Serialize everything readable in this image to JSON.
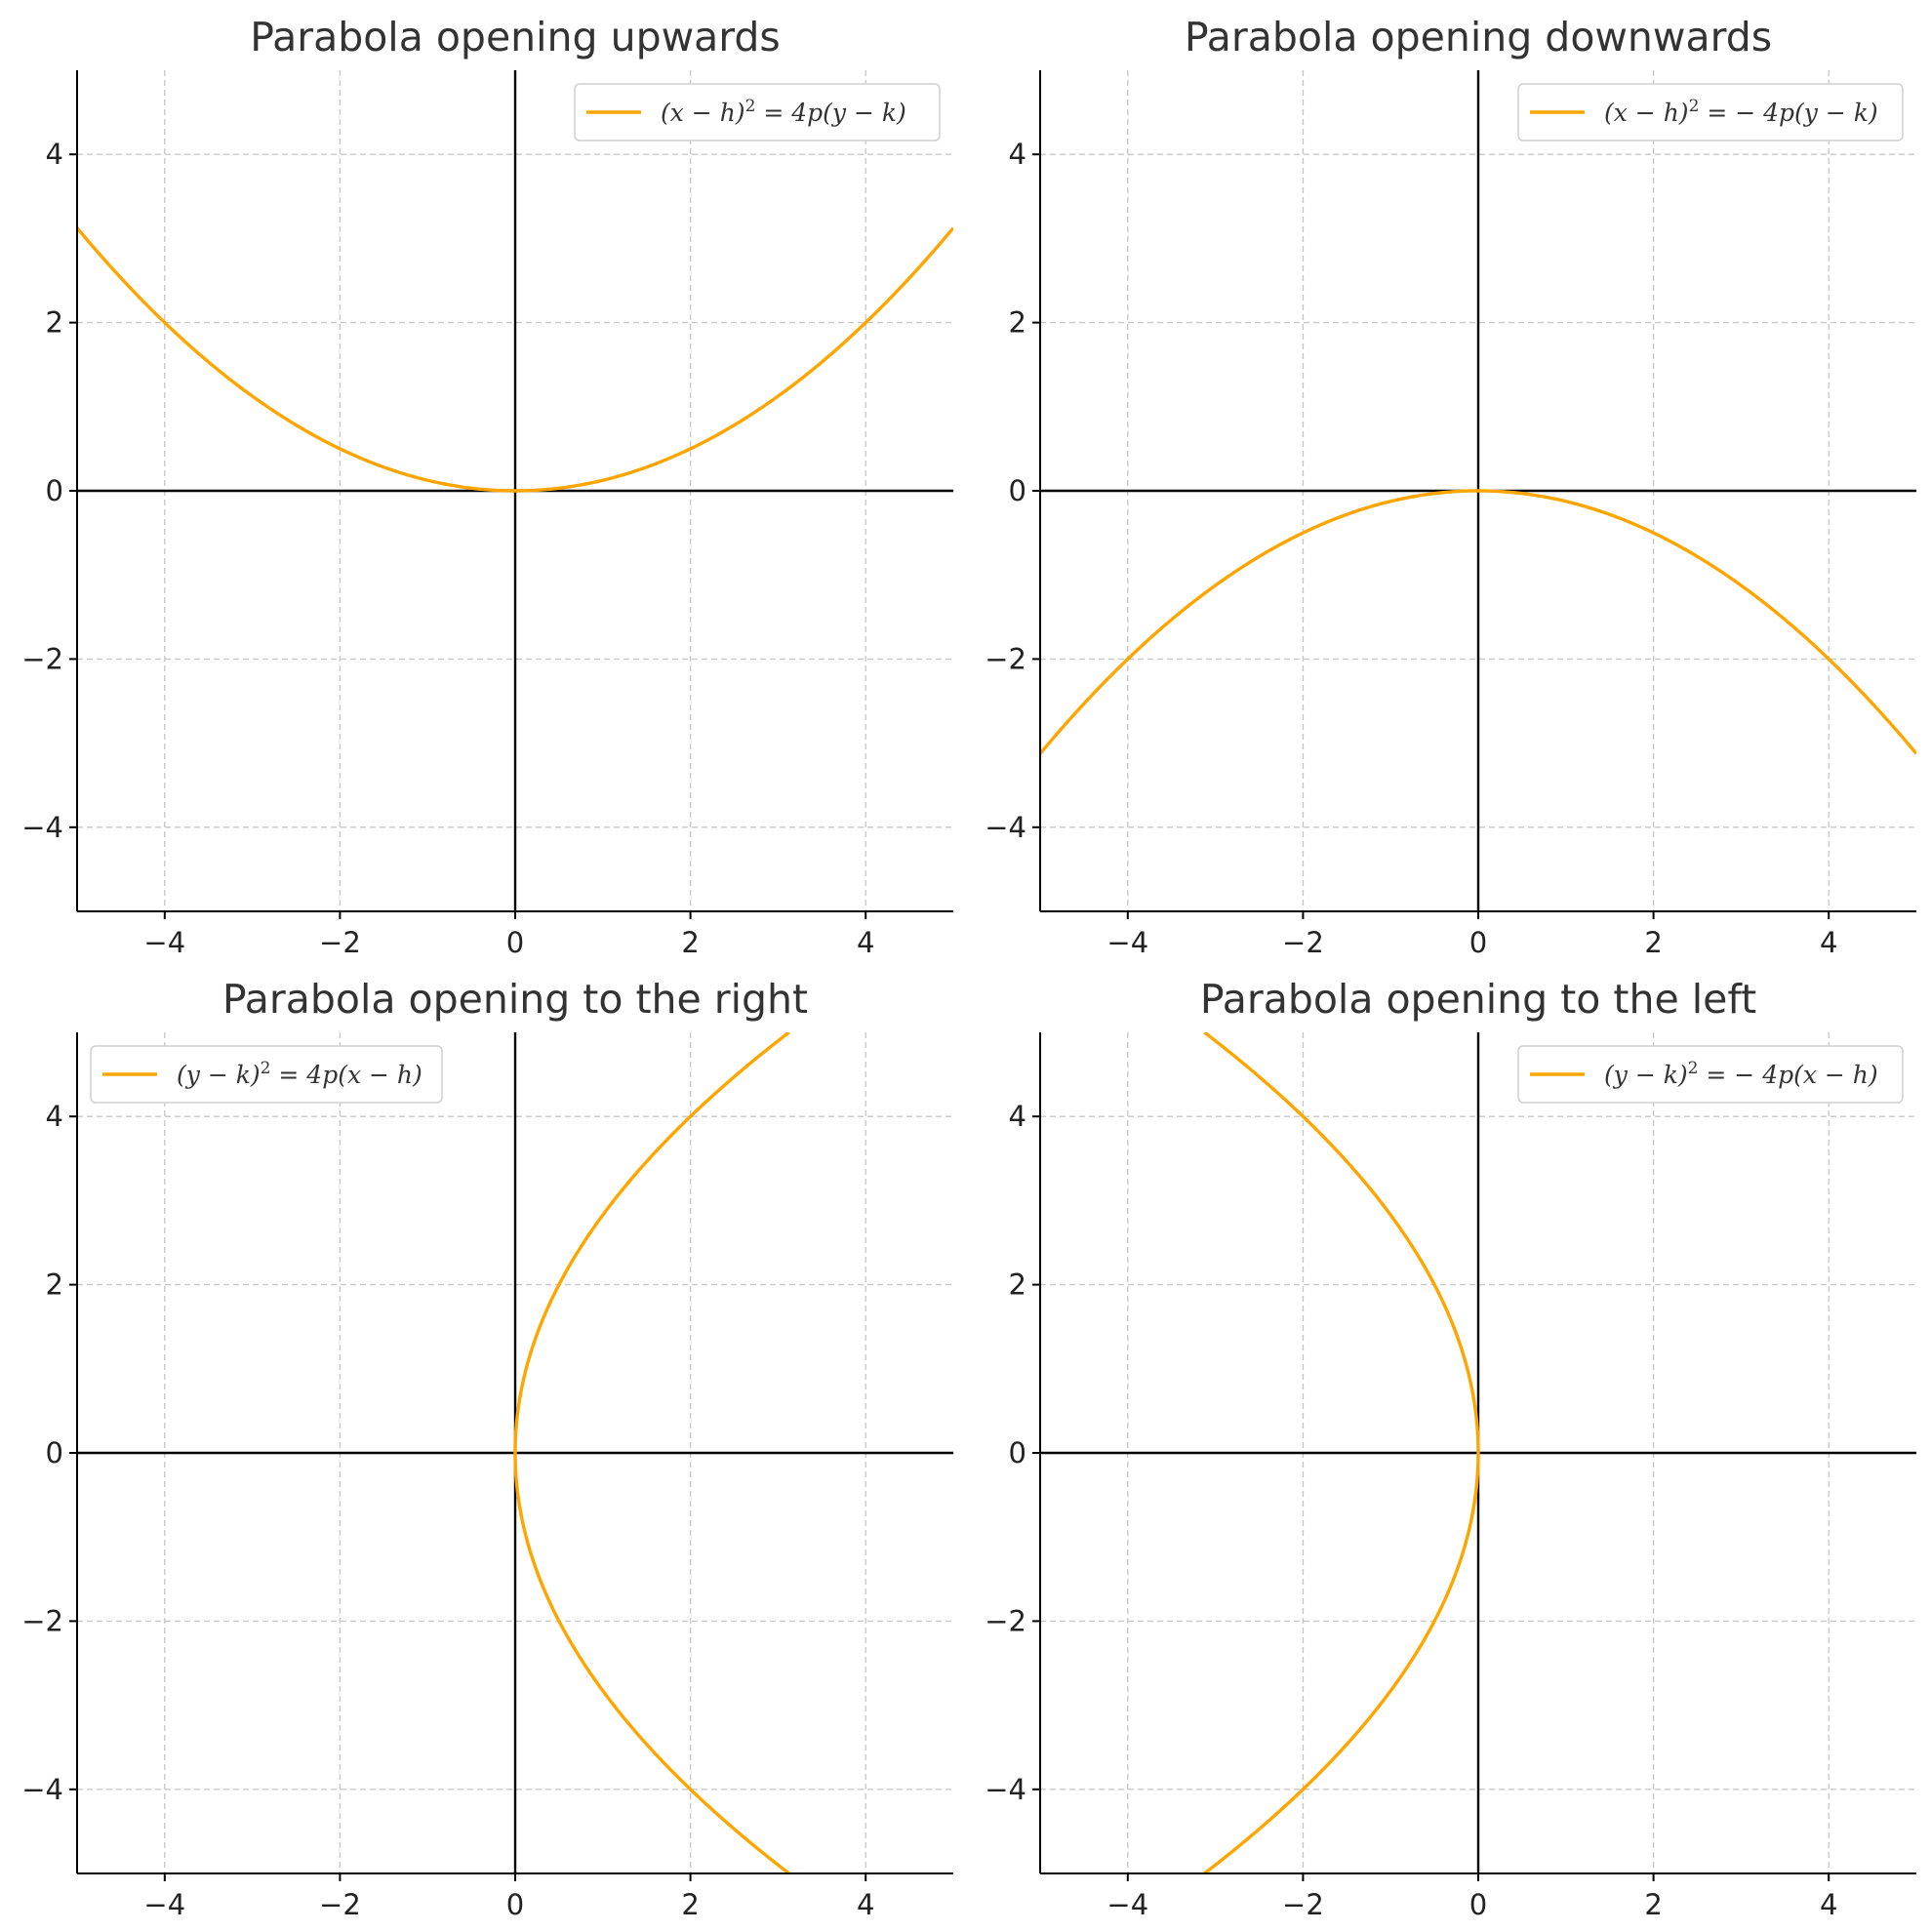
{
  "colors": {
    "curve": "#FFA500",
    "grid": "#c8c8c8",
    "axes": "#000000",
    "text": "#333333"
  },
  "chart_data": [
    {
      "type": "line",
      "title": "Parabola opening upwards",
      "orientation": "up",
      "equation": "y = x^2 / 8",
      "series": [
        {
          "name": "(x − h)² = 4p(y − k)"
        }
      ],
      "x": [
        -5,
        -4.5,
        -4,
        -3.5,
        -3,
        -2.5,
        -2,
        -1.5,
        -1,
        -0.5,
        0,
        0.5,
        1,
        1.5,
        2,
        2.5,
        3,
        3.5,
        4,
        4.5,
        5
      ],
      "y": [
        3.125,
        2.531,
        2.0,
        1.531,
        1.125,
        0.781,
        0.5,
        0.281,
        0.125,
        0.031,
        0,
        0.031,
        0.125,
        0.281,
        0.5,
        0.781,
        1.125,
        1.531,
        2.0,
        2.531,
        3.125
      ],
      "xlim": [
        -5,
        5
      ],
      "ylim": [
        -5,
        5
      ],
      "xticks": [
        -4,
        -2,
        0,
        2,
        4
      ],
      "yticks": [
        -4,
        -2,
        0,
        2,
        4
      ],
      "xtick_labels": [
        "−4",
        "−2",
        "0",
        "2",
        "4"
      ],
      "ytick_labels": [
        "−4",
        "−2",
        "0",
        "2",
        "4"
      ],
      "grid": true,
      "legend_position": "top-right"
    },
    {
      "type": "line",
      "title": "Parabola opening downwards",
      "orientation": "down",
      "equation": "y = -x^2 / 8",
      "series": [
        {
          "name": "(x − h)² = − 4p(y − k)"
        }
      ],
      "x": [
        -5,
        -4.5,
        -4,
        -3.5,
        -3,
        -2.5,
        -2,
        -1.5,
        -1,
        -0.5,
        0,
        0.5,
        1,
        1.5,
        2,
        2.5,
        3,
        3.5,
        4,
        4.5,
        5
      ],
      "y": [
        -3.125,
        -2.531,
        -2.0,
        -1.531,
        -1.125,
        -0.781,
        -0.5,
        -0.281,
        -0.125,
        -0.031,
        0,
        -0.031,
        -0.125,
        -0.281,
        -0.5,
        -0.781,
        -1.125,
        -1.531,
        -2.0,
        -2.531,
        -3.125
      ],
      "xlim": [
        -5,
        5
      ],
      "ylim": [
        -5,
        5
      ],
      "xticks": [
        -4,
        -2,
        0,
        2,
        4
      ],
      "yticks": [
        -4,
        -2,
        0,
        2,
        4
      ],
      "xtick_labels": [
        "−4",
        "−2",
        "0",
        "2",
        "4"
      ],
      "ytick_labels": [
        "−4",
        "−2",
        "0",
        "2",
        "4"
      ],
      "grid": true,
      "legend_position": "top-right"
    },
    {
      "type": "line",
      "title": "Parabola opening to the right",
      "orientation": "right",
      "equation": "x = y^2 / 8",
      "series": [
        {
          "name": "(y − k)² = 4p(x − h)"
        }
      ],
      "x": [
        3.125,
        2.531,
        2.0,
        1.531,
        1.125,
        0.781,
        0.5,
        0.281,
        0.125,
        0.031,
        0,
        0.031,
        0.125,
        0.281,
        0.5,
        0.781,
        1.125,
        1.531,
        2.0,
        2.531,
        3.125
      ],
      "y": [
        -5,
        -4.5,
        -4,
        -3.5,
        -3,
        -2.5,
        -2,
        -1.5,
        -1,
        -0.5,
        0,
        0.5,
        1,
        1.5,
        2,
        2.5,
        3,
        3.5,
        4,
        4.5,
        5
      ],
      "xlim": [
        -5,
        5
      ],
      "ylim": [
        -5,
        5
      ],
      "xticks": [
        -4,
        -2,
        0,
        2,
        4
      ],
      "yticks": [
        -4,
        -2,
        0,
        2,
        4
      ],
      "xtick_labels": [
        "−4",
        "−2",
        "0",
        "2",
        "4"
      ],
      "ytick_labels": [
        "−4",
        "−2",
        "0",
        "2",
        "4"
      ],
      "grid": true,
      "legend_position": "top-left"
    },
    {
      "type": "line",
      "title": "Parabola opening to the left",
      "orientation": "left",
      "equation": "x = -y^2 / 8",
      "series": [
        {
          "name": "(y − k)² = − 4p(x − h)"
        }
      ],
      "x": [
        -3.125,
        -2.531,
        -2.0,
        -1.531,
        -1.125,
        -0.781,
        -0.5,
        -0.281,
        -0.125,
        -0.031,
        0,
        -0.031,
        -0.125,
        -0.281,
        -0.5,
        -0.781,
        -1.125,
        -1.531,
        -2.0,
        -2.531,
        -3.125
      ],
      "y": [
        -5,
        -4.5,
        -4,
        -3.5,
        -3,
        -2.5,
        -2,
        -1.5,
        -1,
        -0.5,
        0,
        0.5,
        1,
        1.5,
        2,
        2.5,
        3,
        3.5,
        4,
        4.5,
        5
      ],
      "xlim": [
        -5,
        5
      ],
      "ylim": [
        -5,
        5
      ],
      "xticks": [
        -4,
        -2,
        0,
        2,
        4
      ],
      "yticks": [
        -4,
        -2,
        0,
        2,
        4
      ],
      "xtick_labels": [
        "−4",
        "−2",
        "0",
        "2",
        "4"
      ],
      "ytick_labels": [
        "−4",
        "−2",
        "0",
        "2",
        "4"
      ],
      "grid": true,
      "legend_position": "top-right"
    }
  ]
}
